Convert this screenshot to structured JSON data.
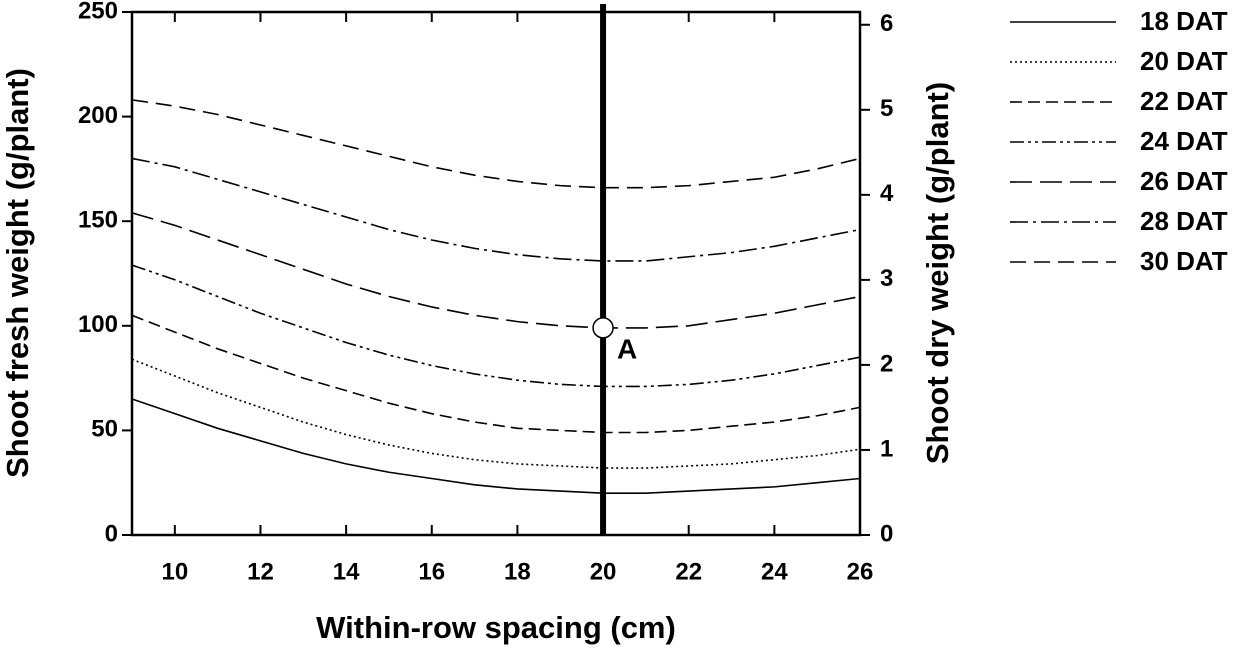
{
  "chart_data": {
    "type": "line",
    "x_label": "Within-row spacing (cm)",
    "y_label": "Shoot fresh weight (g/plant)",
    "y2_label": "Shoot dry weight (g/plant)",
    "x": [
      9,
      10,
      11,
      12,
      13,
      14,
      15,
      16,
      17,
      18,
      19,
      20,
      21,
      22,
      23,
      24,
      25,
      26
    ],
    "xlim": [
      9,
      26
    ],
    "xticks": [
      10,
      12,
      14,
      16,
      18,
      20,
      22,
      24,
      26
    ],
    "ylim": [
      0,
      250
    ],
    "yticks": [
      0,
      50,
      100,
      150,
      200,
      250
    ],
    "y2lim": [
      0,
      6.15
    ],
    "y2ticks": [
      0,
      1,
      2,
      3,
      4,
      5,
      6
    ],
    "vline": 20,
    "point": {
      "x": 20,
      "y": 99,
      "label": "A"
    },
    "series": [
      {
        "name": "18 DAT",
        "color": "#000000",
        "dash": "none",
        "values": [
          65,
          58,
          51,
          45,
          39,
          34,
          30,
          27,
          24,
          22,
          21,
          20,
          20,
          21,
          22,
          23,
          25,
          27
        ]
      },
      {
        "name": "20 DAT",
        "color": "#000000",
        "dash": "2,3",
        "values": [
          84,
          76,
          68,
          61,
          54,
          48,
          43,
          39,
          36,
          34,
          33,
          32,
          32,
          33,
          34,
          36,
          38,
          41
        ]
      },
      {
        "name": "22 DAT",
        "color": "#000000",
        "dash": "12,6",
        "values": [
          105,
          97,
          89,
          82,
          75,
          69,
          63,
          58,
          54,
          51,
          50,
          49,
          49,
          50,
          52,
          54,
          57,
          61
        ]
      },
      {
        "name": "24 DAT",
        "color": "#000000",
        "dash": "14,4,3,4,3,4",
        "values": [
          129,
          122,
          114,
          106,
          99,
          92,
          86,
          81,
          77,
          74,
          72,
          71,
          71,
          72,
          74,
          77,
          81,
          85
        ]
      },
      {
        "name": "26 DAT",
        "color": "#000000",
        "dash": "22,8",
        "values": [
          154,
          148,
          141,
          134,
          127,
          120,
          114,
          109,
          105,
          102,
          100,
          99,
          99,
          100,
          103,
          106,
          110,
          114
        ]
      },
      {
        "name": "28 DAT",
        "color": "#000000",
        "dash": "18,5,3,5",
        "values": [
          180,
          176,
          170,
          164,
          158,
          152,
          146,
          141,
          137,
          134,
          132,
          131,
          131,
          133,
          135,
          138,
          142,
          146
        ]
      },
      {
        "name": "30 DAT",
        "color": "#000000",
        "dash": "16,8",
        "values": [
          208,
          205,
          201,
          196,
          191,
          186,
          181,
          176,
          172,
          169,
          167,
          166,
          166,
          167,
          169,
          171,
          175,
          180
        ]
      }
    ]
  }
}
